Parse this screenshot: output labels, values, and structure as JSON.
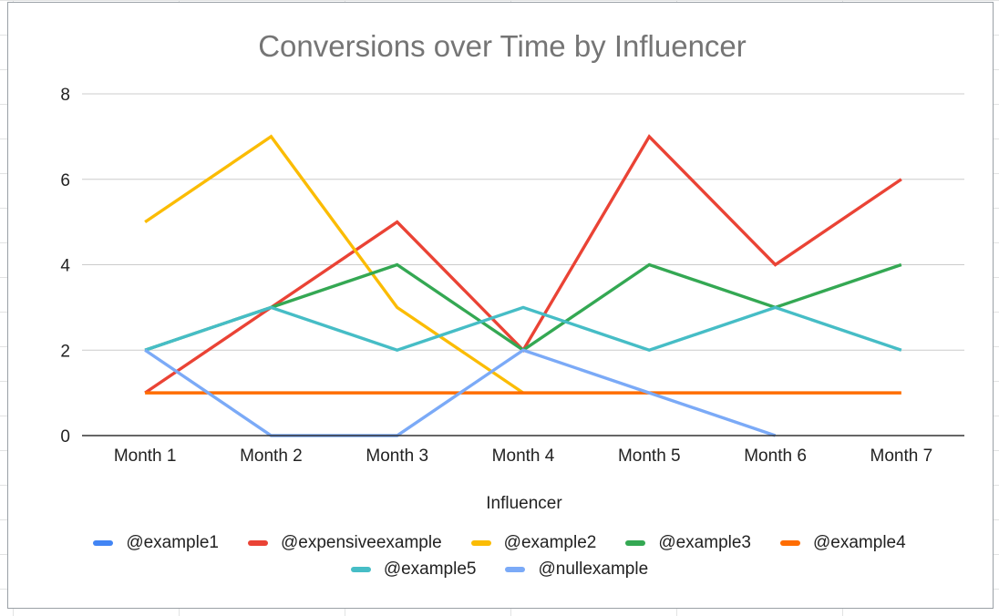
{
  "chart_data": {
    "type": "line",
    "title": "Conversions over Time by Influencer",
    "xlabel": "Influencer",
    "ylabel": "",
    "categories": [
      "Month 1",
      "Month 2",
      "Month 3",
      "Month 4",
      "Month 5",
      "Month 6",
      "Month 7"
    ],
    "ylim": [
      0,
      8
    ],
    "yticks": [
      0,
      2,
      4,
      6,
      8
    ],
    "grid": true,
    "legend_position": "bottom",
    "series": [
      {
        "name": "@example1",
        "color": "#4285f4",
        "values": [
          null,
          null,
          null,
          null,
          null,
          null,
          null
        ]
      },
      {
        "name": "@expensiveexample",
        "color": "#ea4335",
        "values": [
          1,
          3,
          5,
          2,
          7,
          4,
          6
        ]
      },
      {
        "name": "@example2",
        "color": "#fbbc04",
        "values": [
          5,
          7,
          3,
          1,
          null,
          null,
          null
        ]
      },
      {
        "name": "@example3",
        "color": "#34a853",
        "values": [
          2,
          3,
          4,
          2,
          4,
          3,
          4
        ]
      },
      {
        "name": "@example4",
        "color": "#ff6d01",
        "values": [
          1,
          1,
          1,
          1,
          1,
          1,
          1
        ]
      },
      {
        "name": "@example5",
        "color": "#46bdc6",
        "values": [
          2,
          3,
          2,
          3,
          2,
          3,
          2
        ]
      },
      {
        "name": "@nullexample",
        "color": "#7baaf7",
        "values": [
          2,
          0,
          0,
          2,
          1,
          0,
          null
        ]
      }
    ]
  }
}
